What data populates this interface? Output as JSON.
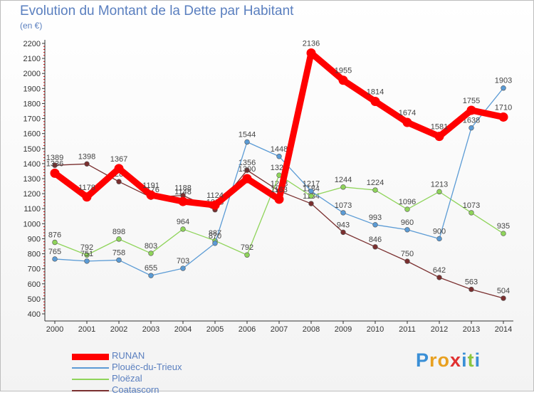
{
  "title": "Evolution du Montant de la Dette par Habitant",
  "subtitle": "(en €)",
  "logo": {
    "letters": [
      "P",
      "r",
      "o",
      "x",
      "i",
      "t",
      "i"
    ],
    "colors": [
      "#3a8fd6",
      "#e8a020",
      "#e8a020",
      "#e03030",
      "#3a8fd6",
      "#8cc63f",
      "#3a8fd6"
    ]
  },
  "chart_data": {
    "type": "line",
    "title": "Evolution du Montant de la Dette par Habitant",
    "subtitle": "(en €)",
    "ylim": [
      400,
      2200
    ],
    "ytick_step": 100,
    "x": [
      "2000",
      "2001",
      "2002",
      "2003",
      "2004",
      "2005",
      "2006",
      "2007",
      "2008",
      "2009",
      "2010",
      "2011",
      "2012",
      "2013",
      "2014"
    ],
    "grid": false,
    "legend_position": "bottom-left",
    "series": [
      {
        "name": "RUNAN",
        "color": "#ff0000",
        "values": [
          1336,
          1178,
          1367,
          1191,
          1148,
          1124,
          1300,
          1163,
          2136,
          1955,
          1814,
          1674,
          1581,
          1755,
          1710
        ]
      },
      {
        "name": "Plouëc-du-Trieux",
        "color": "#5b9bd5",
        "values": [
          765,
          751,
          758,
          655,
          703,
          870,
          1544,
          1448,
          1217,
          1073,
          993,
          960,
          900,
          1638,
          1903
        ]
      },
      {
        "name": "Ploëzal",
        "color": "#8fd45a",
        "values": [
          876,
          792,
          898,
          803,
          964,
          887,
          792,
          1323,
          1184,
          1244,
          1224,
          1096,
          1213,
          1073,
          935
        ]
      },
      {
        "name": "Coatascorn",
        "color": "#7a2f2f",
        "values": [
          1389,
          1398,
          1280,
          1176,
          1188,
          1093,
          1356,
          1218,
          1134,
          943,
          846,
          750,
          642,
          563,
          504
        ]
      }
    ]
  }
}
